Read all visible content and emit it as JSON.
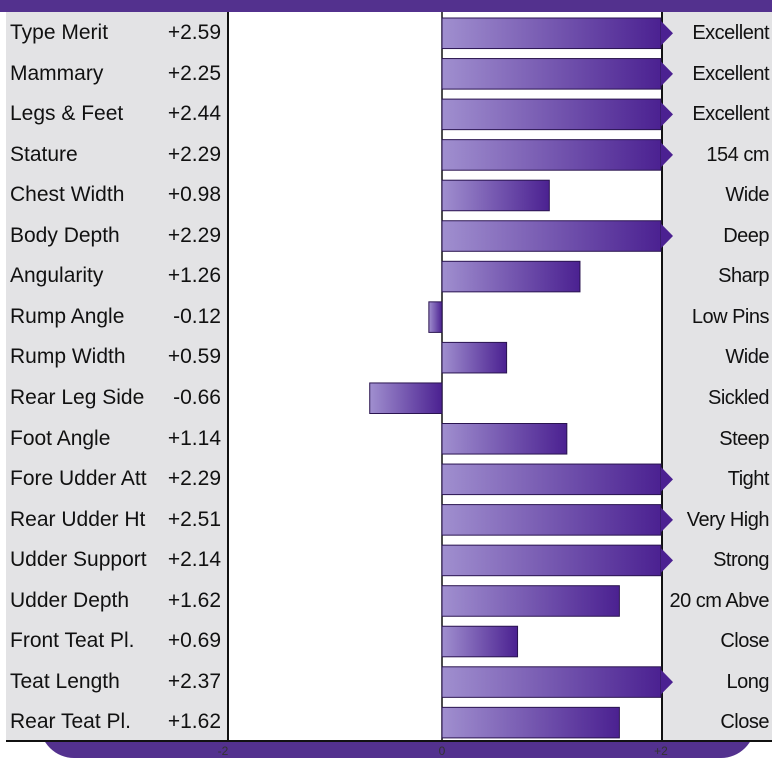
{
  "chart_data": {
    "type": "bar",
    "orientation": "horizontal",
    "xlim": [
      -2,
      2
    ],
    "x_ticks": [
      "-2",
      "0",
      "+2"
    ],
    "colors": {
      "bar_dark": "#4b2191",
      "bar_light": "#a08fcf",
      "band": "#53318e",
      "panel": "#e3e3e5"
    },
    "categories": [
      "Type Merit",
      "Mammary",
      "Legs & Feet",
      "Stature",
      "Chest Width",
      "Body Depth",
      "Angularity",
      "Rump Angle",
      "Rump Width",
      "Rear Leg Side",
      "Foot Angle",
      "Fore Udder Att",
      "Rear Udder Ht",
      "Udder Support",
      "Udder Depth",
      "Front Teat Pl.",
      "Teat Length",
      "Rear Teat Pl."
    ],
    "values": [
      2.59,
      2.25,
      2.44,
      2.29,
      0.98,
      2.29,
      1.26,
      -0.12,
      0.59,
      -0.66,
      1.14,
      2.29,
      2.51,
      2.14,
      1.62,
      0.69,
      2.37,
      1.62
    ],
    "value_labels": [
      "+2.59",
      "+2.25",
      "+2.44",
      "+2.29",
      "+0.98",
      "+2.29",
      "+1.26",
      "-0.12",
      "+0.59",
      "-0.66",
      "+1.14",
      "+2.29",
      "+2.51",
      "+2.14",
      "+1.62",
      "+0.69",
      "+2.37",
      "+1.62"
    ],
    "descriptors": [
      "Excellent",
      "Excellent",
      "Excellent",
      "154 cm",
      "Wide",
      "Deep",
      "Sharp",
      "Low Pins",
      "Wide",
      "Sickled",
      "Steep",
      "Tight",
      "Very High",
      "Strong",
      "20 cm Abve",
      "Close",
      "Long",
      "Close"
    ]
  }
}
